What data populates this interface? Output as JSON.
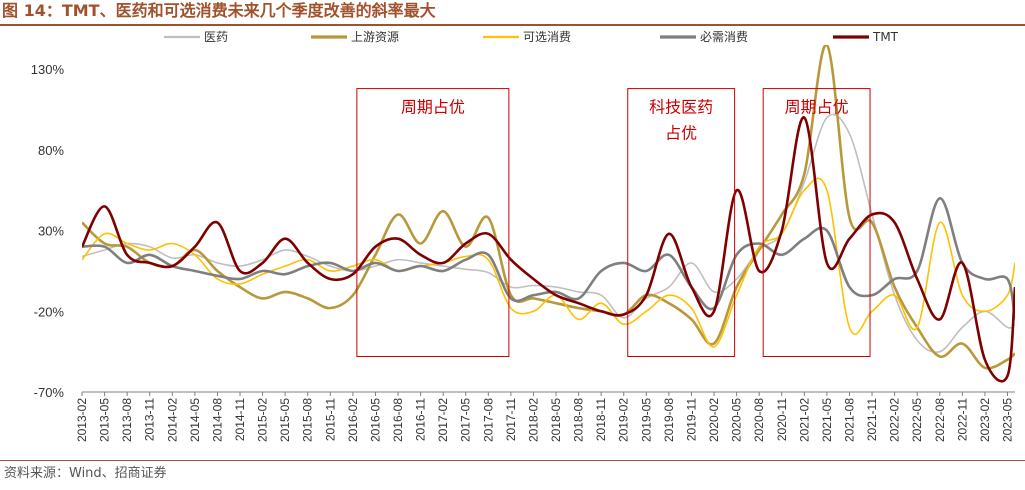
{
  "header": {
    "title": "图 14：TMT、医药和可选消费未来几个季度改善的斜率最大"
  },
  "footer": {
    "source": "资料来源：Wind、招商证券"
  },
  "chart_data": {
    "type": "line",
    "title": "图 14：TMT、医药和可选消费未来几个季度改善的斜率最大",
    "xlabel": "",
    "ylabel": "",
    "ylim": [
      -70,
      145
    ],
    "yticks": [
      -70,
      -20,
      30,
      80,
      130
    ],
    "ytick_labels": [
      "-70%",
      "-20%",
      "30%",
      "80%",
      "130%"
    ],
    "grid": false,
    "legend_position": "top",
    "x_tick_labels": [
      "2013-02",
      "2013-05",
      "2013-08",
      "2013-11",
      "2014-02",
      "2014-05",
      "2014-08",
      "2014-11",
      "2015-02",
      "2015-05",
      "2015-08",
      "2015-11",
      "2016-02",
      "2016-05",
      "2016-08",
      "2016-11",
      "2017-02",
      "2017-05",
      "2017-08",
      "2017-11",
      "2018-02",
      "2018-05",
      "2018-08",
      "2018-11",
      "2019-02",
      "2019-05",
      "2019-08",
      "2019-11",
      "2020-02",
      "2020-05",
      "2020-08",
      "2020-11",
      "2021-02",
      "2021-05",
      "2021-08",
      "2021-11",
      "2022-02",
      "2022-05",
      "2022-08",
      "2022-11",
      "2023-02",
      "2023-05"
    ],
    "x_start": "2013-02",
    "x_end": "2023-06",
    "series": [
      {
        "name": "医药",
        "color": "#bfbfbf",
        "width": 1.6,
        "points": [
          [
            "2013-02",
            14
          ],
          [
            "2013-05",
            18
          ],
          [
            "2013-08",
            22
          ],
          [
            "2013-11",
            20
          ],
          [
            "2014-02",
            13
          ],
          [
            "2014-05",
            15
          ],
          [
            "2014-08",
            10
          ],
          [
            "2014-11",
            8
          ],
          [
            "2015-02",
            12
          ],
          [
            "2015-05",
            18
          ],
          [
            "2015-08",
            14
          ],
          [
            "2015-11",
            8
          ],
          [
            "2016-02",
            5
          ],
          [
            "2016-05",
            8
          ],
          [
            "2016-08",
            12
          ],
          [
            "2016-11",
            10
          ],
          [
            "2017-02",
            8
          ],
          [
            "2017-05",
            6
          ],
          [
            "2017-08",
            4
          ],
          [
            "2017-11",
            -5
          ],
          [
            "2018-02",
            -4
          ],
          [
            "2018-05",
            -5
          ],
          [
            "2018-08",
            -8
          ],
          [
            "2018-11",
            -10
          ],
          [
            "2019-02",
            -24
          ],
          [
            "2019-05",
            -12
          ],
          [
            "2019-08",
            -5
          ],
          [
            "2019-11",
            10
          ],
          [
            "2020-02",
            -8
          ],
          [
            "2020-05",
            0
          ],
          [
            "2020-08",
            18
          ],
          [
            "2020-11",
            28
          ],
          [
            "2021-02",
            60
          ],
          [
            "2021-05",
            100
          ],
          [
            "2021-08",
            90
          ],
          [
            "2021-11",
            40
          ],
          [
            "2022-02",
            -10
          ],
          [
            "2022-05",
            -38
          ],
          [
            "2022-08",
            -45
          ],
          [
            "2022-11",
            -30
          ],
          [
            "2023-02",
            -20
          ],
          [
            "2023-05",
            -30
          ],
          [
            "2023-06",
            -28
          ]
        ]
      },
      {
        "name": "上游资源",
        "color": "#b8993a",
        "width": 2.6,
        "points": [
          [
            "2013-02",
            35
          ],
          [
            "2013-05",
            22
          ],
          [
            "2013-08",
            20
          ],
          [
            "2013-11",
            10
          ],
          [
            "2014-02",
            8
          ],
          [
            "2014-05",
            18
          ],
          [
            "2014-08",
            5
          ],
          [
            "2014-11",
            -5
          ],
          [
            "2015-02",
            -12
          ],
          [
            "2015-05",
            -8
          ],
          [
            "2015-08",
            -12
          ],
          [
            "2015-11",
            -18
          ],
          [
            "2016-02",
            -10
          ],
          [
            "2016-05",
            15
          ],
          [
            "2016-08",
            40
          ],
          [
            "2016-11",
            22
          ],
          [
            "2017-02",
            42
          ],
          [
            "2017-05",
            20
          ],
          [
            "2017-08",
            38
          ],
          [
            "2017-11",
            -10
          ],
          [
            "2018-02",
            -12
          ],
          [
            "2018-05",
            -15
          ],
          [
            "2018-08",
            -18
          ],
          [
            "2018-11",
            -20
          ],
          [
            "2019-02",
            -22
          ],
          [
            "2019-05",
            -10
          ],
          [
            "2019-08",
            -15
          ],
          [
            "2019-11",
            -25
          ],
          [
            "2020-02",
            -40
          ],
          [
            "2020-05",
            -5
          ],
          [
            "2020-08",
            18
          ],
          [
            "2020-11",
            40
          ],
          [
            "2021-02",
            65
          ],
          [
            "2021-05",
            145
          ],
          [
            "2021-08",
            38
          ],
          [
            "2021-11",
            35
          ],
          [
            "2022-02",
            -5
          ],
          [
            "2022-05",
            -30
          ],
          [
            "2022-08",
            -48
          ],
          [
            "2022-11",
            -40
          ],
          [
            "2023-02",
            -55
          ],
          [
            "2023-05",
            -50
          ],
          [
            "2023-06",
            -46
          ]
        ]
      },
      {
        "name": "可选消费",
        "color": "#ffc000",
        "width": 1.6,
        "points": [
          [
            "2013-02",
            12
          ],
          [
            "2013-05",
            28
          ],
          [
            "2013-08",
            22
          ],
          [
            "2013-11",
            18
          ],
          [
            "2014-02",
            22
          ],
          [
            "2014-05",
            15
          ],
          [
            "2014-08",
            0
          ],
          [
            "2014-11",
            -3
          ],
          [
            "2015-02",
            3
          ],
          [
            "2015-05",
            8
          ],
          [
            "2015-08",
            12
          ],
          [
            "2015-11",
            5
          ],
          [
            "2016-02",
            8
          ],
          [
            "2016-05",
            12
          ],
          [
            "2016-08",
            5
          ],
          [
            "2016-11",
            8
          ],
          [
            "2017-02",
            10
          ],
          [
            "2017-05",
            14
          ],
          [
            "2017-08",
            12
          ],
          [
            "2017-11",
            -18
          ],
          [
            "2018-02",
            -20
          ],
          [
            "2018-05",
            -10
          ],
          [
            "2018-08",
            -25
          ],
          [
            "2018-11",
            -15
          ],
          [
            "2019-02",
            -28
          ],
          [
            "2019-05",
            -20
          ],
          [
            "2019-08",
            -10
          ],
          [
            "2019-11",
            -18
          ],
          [
            "2020-02",
            -42
          ],
          [
            "2020-05",
            -10
          ],
          [
            "2020-08",
            20
          ],
          [
            "2020-11",
            28
          ],
          [
            "2021-02",
            55
          ],
          [
            "2021-05",
            55
          ],
          [
            "2021-08",
            -30
          ],
          [
            "2021-11",
            -20
          ],
          [
            "2022-02",
            -10
          ],
          [
            "2022-05",
            -30
          ],
          [
            "2022-08",
            35
          ],
          [
            "2022-11",
            -10
          ],
          [
            "2023-02",
            -20
          ],
          [
            "2023-05",
            -10
          ],
          [
            "2023-06",
            10
          ]
        ]
      },
      {
        "name": "必需消费",
        "color": "#7f7f7f",
        "width": 2.6,
        "points": [
          [
            "2013-02",
            20
          ],
          [
            "2013-05",
            20
          ],
          [
            "2013-08",
            10
          ],
          [
            "2013-11",
            15
          ],
          [
            "2014-02",
            8
          ],
          [
            "2014-05",
            5
          ],
          [
            "2014-08",
            2
          ],
          [
            "2014-11",
            0
          ],
          [
            "2015-02",
            5
          ],
          [
            "2015-05",
            3
          ],
          [
            "2015-08",
            8
          ],
          [
            "2015-11",
            10
          ],
          [
            "2016-02",
            5
          ],
          [
            "2016-05",
            10
          ],
          [
            "2016-08",
            5
          ],
          [
            "2016-11",
            8
          ],
          [
            "2017-02",
            5
          ],
          [
            "2017-05",
            12
          ],
          [
            "2017-08",
            15
          ],
          [
            "2017-11",
            -12
          ],
          [
            "2018-02",
            -10
          ],
          [
            "2018-05",
            -8
          ],
          [
            "2018-08",
            -12
          ],
          [
            "2018-11",
            5
          ],
          [
            "2019-02",
            10
          ],
          [
            "2019-05",
            5
          ],
          [
            "2019-08",
            15
          ],
          [
            "2019-11",
            -5
          ],
          [
            "2020-02",
            -18
          ],
          [
            "2020-05",
            15
          ],
          [
            "2020-08",
            22
          ],
          [
            "2020-11",
            15
          ],
          [
            "2021-02",
            25
          ],
          [
            "2021-05",
            30
          ],
          [
            "2021-08",
            -5
          ],
          [
            "2021-11",
            -10
          ],
          [
            "2022-02",
            0
          ],
          [
            "2022-05",
            5
          ],
          [
            "2022-08",
            50
          ],
          [
            "2022-11",
            10
          ],
          [
            "2023-02",
            0
          ],
          [
            "2023-05",
            0
          ],
          [
            "2023-06",
            -25
          ]
        ]
      },
      {
        "name": "TMT",
        "color": "#800000",
        "width": 2.6,
        "points": [
          [
            "2013-02",
            20
          ],
          [
            "2013-05",
            45
          ],
          [
            "2013-08",
            15
          ],
          [
            "2013-11",
            10
          ],
          [
            "2014-02",
            8
          ],
          [
            "2014-05",
            20
          ],
          [
            "2014-08",
            35
          ],
          [
            "2014-11",
            5
          ],
          [
            "2015-02",
            10
          ],
          [
            "2015-05",
            25
          ],
          [
            "2015-08",
            10
          ],
          [
            "2015-11",
            0
          ],
          [
            "2016-02",
            3
          ],
          [
            "2016-05",
            20
          ],
          [
            "2016-08",
            25
          ],
          [
            "2016-11",
            15
          ],
          [
            "2017-02",
            10
          ],
          [
            "2017-05",
            22
          ],
          [
            "2017-08",
            28
          ],
          [
            "2017-11",
            12
          ],
          [
            "2018-02",
            0
          ],
          [
            "2018-05",
            -10
          ],
          [
            "2018-08",
            -15
          ],
          [
            "2018-11",
            -20
          ],
          [
            "2019-02",
            -22
          ],
          [
            "2019-05",
            -10
          ],
          [
            "2019-08",
            28
          ],
          [
            "2019-11",
            -5
          ],
          [
            "2020-02",
            -20
          ],
          [
            "2020-05",
            55
          ],
          [
            "2020-08",
            5
          ],
          [
            "2020-11",
            30
          ],
          [
            "2021-02",
            100
          ],
          [
            "2021-05",
            10
          ],
          [
            "2021-08",
            25
          ],
          [
            "2021-11",
            40
          ],
          [
            "2022-02",
            35
          ],
          [
            "2022-05",
            0
          ],
          [
            "2022-08",
            -25
          ],
          [
            "2022-11",
            10
          ],
          [
            "2023-02",
            -50
          ],
          [
            "2023-05",
            -60
          ],
          [
            "2023-06",
            -5
          ]
        ]
      }
    ],
    "annotations": [
      {
        "label": "周期占优",
        "lines": [
          "周期占优"
        ],
        "x_start": "2016-02",
        "x_end": "2017-11",
        "y_top": 118,
        "y_bottom": -48
      },
      {
        "label": "科技医药占优",
        "lines": [
          "科技医药",
          "占优"
        ],
        "x_start": "2019-02",
        "x_end": "2020-05",
        "y_top": 118,
        "y_bottom": -48
      },
      {
        "label": "周期占优",
        "lines": [
          "周期占优"
        ],
        "x_start": "2020-08",
        "x_end": "2021-11",
        "y_top": 118,
        "y_bottom": -48
      }
    ]
  }
}
